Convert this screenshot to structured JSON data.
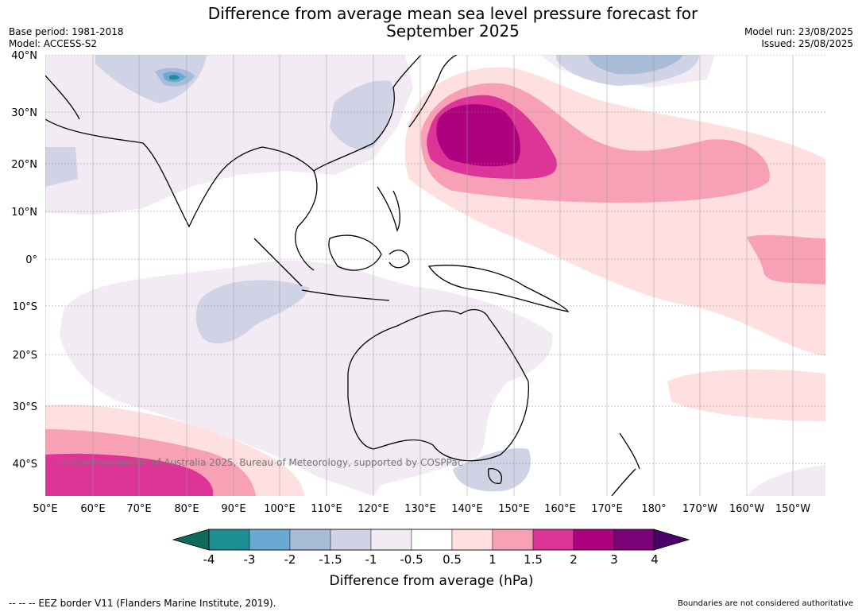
{
  "title": {
    "line1": "Difference from average mean sea level pressure forecast for",
    "line2": "September 2025"
  },
  "meta": {
    "base_period": "Base period: 1981-2018",
    "model": "Model: ACCESS-S2",
    "model_run": "Model run: 23/08/2025",
    "issued": "Issued: 25/08/2025"
  },
  "map": {
    "copyright": "© Commonwealth of Australia 2025, Bureau of Meteorology, supported by COSPPac",
    "lat_labels": [
      "40°N",
      "30°N",
      "20°N",
      "10°N",
      "0°",
      "10°S",
      "20°S",
      "30°S",
      "40°S"
    ],
    "lon_labels": [
      "50°E",
      "60°E",
      "70°E",
      "80°E",
      "90°E",
      "100°E",
      "110°E",
      "120°E",
      "130°E",
      "140°E",
      "150°E",
      "160°E",
      "170°E",
      "180°",
      "170°W",
      "160°W",
      "150°W"
    ]
  },
  "colorbar": {
    "title": "Difference from average (hPa)",
    "tick_labels": [
      "-4",
      "-3",
      "-2",
      "-1.5",
      "-1",
      "-0.5",
      "0.5",
      "1",
      "1.5",
      "2",
      "3",
      "4"
    ],
    "colors": [
      "#0e6b5c",
      "#1f8f96",
      "#6aaad2",
      "#a8bcd8",
      "#d0d3e5",
      "#f2ebf4",
      "#ffffff",
      "#fde0df",
      "#f8a1b6",
      "#dd3497",
      "#ae017e",
      "#7a0177",
      "#4a006a"
    ]
  },
  "footer": {
    "eez_note": "--  --  -- EEZ border V11 (Flanders Marine Institute, 2019).",
    "boundaries_note": "Boundaries are not considered authoritative"
  }
}
